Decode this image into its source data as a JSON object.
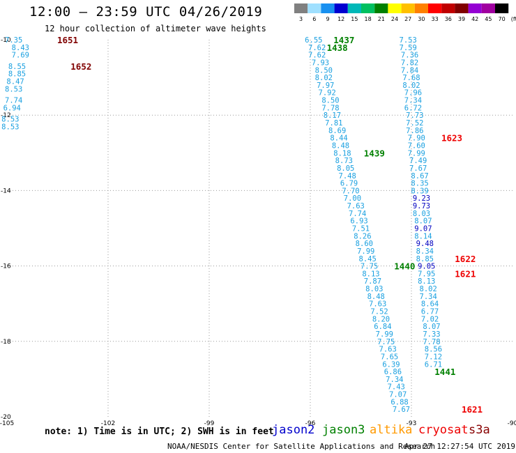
{
  "header": {
    "title": "12:00 — 23:59 UTC 04/26/2019",
    "subtitle": "12 hour collection of altimeter wave heights"
  },
  "colorbar": {
    "labels": [
      "3",
      "6",
      "9",
      "12",
      "15",
      "18",
      "21",
      "24",
      "27",
      "30",
      "33",
      "36",
      "39",
      "42",
      "45",
      "70",
      "(ft)"
    ],
    "colors": [
      "#808080",
      "#a0e0ff",
      "#1890f0",
      "#0000d0",
      "#00b8b8",
      "#00c060",
      "#008000",
      "#ffff00",
      "#ffc000",
      "#ff8000",
      "#ff0000",
      "#c00000",
      "#800000",
      "#9400d3",
      "#a000a0",
      "#000000"
    ]
  },
  "note": "note: 1) Time is in UTC; 2) SWH is in feet",
  "satellites": [
    {
      "name": "jason2",
      "color": "#0000cc"
    },
    {
      "name": "jason3",
      "color": "#008000"
    },
    {
      "name": "altika",
      "color": "#ff9900"
    },
    {
      "name": "cryosat",
      "color": "#ee0000"
    },
    {
      "name": "s3a",
      "color": "#880000"
    }
  ],
  "footer": {
    "left": "NOAA/NESDIS Center for Satellite Applications and Research",
    "right": "Apr 27 12:27:54 UTC 2019"
  },
  "chart_data": {
    "type": "scatter",
    "xlim": [
      -105,
      -90
    ],
    "ylim": [
      -20,
      -10
    ],
    "x_ticks": [
      -105,
      -102,
      -99,
      -96,
      -93,
      -90
    ],
    "y_ticks": [
      -10,
      -12,
      -14,
      -16,
      -18,
      -20
    ],
    "series": [
      {
        "name": "s3a",
        "color": "#1aa0e0",
        "points": [
          {
            "lon": -104.8,
            "lat": -10.0,
            "swh": "7.35"
          },
          {
            "lon": -104.6,
            "lat": -10.2,
            "swh": "8.43"
          },
          {
            "lon": -104.6,
            "lat": -10.4,
            "swh": "7.69"
          },
          {
            "lon": -104.7,
            "lat": -10.7,
            "swh": "8.55"
          },
          {
            "lon": -104.7,
            "lat": -10.9,
            "swh": "8.85"
          },
          {
            "lon": -104.75,
            "lat": -11.1,
            "swh": "8.47"
          },
          {
            "lon": -104.8,
            "lat": -11.3,
            "swh": "8.53"
          },
          {
            "lon": -104.8,
            "lat": -11.6,
            "swh": "7.74"
          },
          {
            "lon": -104.85,
            "lat": -11.8,
            "swh": "6.94"
          },
          {
            "lon": -104.9,
            "lat": -12.1,
            "swh": "8.53"
          },
          {
            "lon": -104.9,
            "lat": -12.3,
            "swh": "8.53"
          }
        ]
      },
      {
        "name": "jason3",
        "color": "#1aa0e0",
        "points": [
          {
            "lon": -95.9,
            "lat": -10.0,
            "swh": "6.55"
          },
          {
            "lon": -95.8,
            "lat": -10.2,
            "swh": "7.62"
          },
          {
            "lon": -95.8,
            "lat": -10.4,
            "swh": "7.62"
          },
          {
            "lon": -95.7,
            "lat": -10.6,
            "swh": "7.93"
          },
          {
            "lon": -95.6,
            "lat": -10.8,
            "swh": "8.50"
          },
          {
            "lon": -95.6,
            "lat": -11.0,
            "swh": "8.02"
          },
          {
            "lon": -95.55,
            "lat": -11.2,
            "swh": "7.97"
          },
          {
            "lon": -95.5,
            "lat": -11.4,
            "swh": "7.92"
          },
          {
            "lon": -95.4,
            "lat": -11.6,
            "swh": "8.50"
          },
          {
            "lon": -95.4,
            "lat": -11.8,
            "swh": "7.78"
          },
          {
            "lon": -95.35,
            "lat": -12.0,
            "swh": "8.17"
          },
          {
            "lon": -95.3,
            "lat": -12.2,
            "swh": "7.81"
          },
          {
            "lon": -95.2,
            "lat": -12.4,
            "swh": "8.69"
          },
          {
            "lon": -95.15,
            "lat": -12.6,
            "swh": "8.44"
          },
          {
            "lon": -95.1,
            "lat": -12.8,
            "swh": "8.48"
          },
          {
            "lon": -95.05,
            "lat": -13.0,
            "swh": "8.18"
          },
          {
            "lon": -95.0,
            "lat": -13.2,
            "swh": "8.73"
          },
          {
            "lon": -94.95,
            "lat": -13.4,
            "swh": "8.05"
          },
          {
            "lon": -94.9,
            "lat": -13.6,
            "swh": "7.48"
          },
          {
            "lon": -94.85,
            "lat": -13.8,
            "swh": "6.79"
          },
          {
            "lon": -94.8,
            "lat": -14.0,
            "swh": "7.70"
          },
          {
            "lon": -94.75,
            "lat": -14.2,
            "swh": "7.00"
          },
          {
            "lon": -94.65,
            "lat": -14.4,
            "swh": "7.63"
          },
          {
            "lon": -94.6,
            "lat": -14.6,
            "swh": "7.74"
          },
          {
            "lon": -94.55,
            "lat": -14.8,
            "swh": "6.93"
          },
          {
            "lon": -94.5,
            "lat": -15.0,
            "swh": "7.51"
          },
          {
            "lon": -94.45,
            "lat": -15.2,
            "swh": "8.26"
          },
          {
            "lon": -94.4,
            "lat": -15.4,
            "swh": "8.60"
          },
          {
            "lon": -94.35,
            "lat": -15.6,
            "swh": "7.99"
          },
          {
            "lon": -94.3,
            "lat": -15.8,
            "swh": "8.45"
          },
          {
            "lon": -94.25,
            "lat": -16.0,
            "swh": "7.75"
          },
          {
            "lon": -94.2,
            "lat": -16.2,
            "swh": "8.13"
          },
          {
            "lon": -94.15,
            "lat": -16.4,
            "swh": "7.87"
          },
          {
            "lon": -94.1,
            "lat": -16.6,
            "swh": "8.03"
          },
          {
            "lon": -94.05,
            "lat": -16.8,
            "swh": "8.48"
          },
          {
            "lon": -94.0,
            "lat": -17.0,
            "swh": "7.63"
          },
          {
            "lon": -93.95,
            "lat": -17.2,
            "swh": "7.52"
          },
          {
            "lon": -93.9,
            "lat": -17.4,
            "swh": "8.20"
          },
          {
            "lon": -93.85,
            "lat": -17.6,
            "swh": "6.84"
          },
          {
            "lon": -93.8,
            "lat": -17.8,
            "swh": "7.99"
          },
          {
            "lon": -93.75,
            "lat": -18.0,
            "swh": "7.75"
          },
          {
            "lon": -93.7,
            "lat": -18.2,
            "swh": "7.63"
          },
          {
            "lon": -93.65,
            "lat": -18.4,
            "swh": "7.65"
          },
          {
            "lon": -93.6,
            "lat": -18.6,
            "swh": "6.39"
          },
          {
            "lon": -93.55,
            "lat": -18.8,
            "swh": "6.86"
          },
          {
            "lon": -93.5,
            "lat": -19.0,
            "swh": "7.34"
          },
          {
            "lon": -93.45,
            "lat": -19.2,
            "swh": "7.43"
          },
          {
            "lon": -93.4,
            "lat": -19.4,
            "swh": "7.07"
          },
          {
            "lon": -93.35,
            "lat": -19.6,
            "swh": "6.88"
          },
          {
            "lon": -93.3,
            "lat": -19.8,
            "swh": "7.67"
          }
        ]
      },
      {
        "name": "cryosat",
        "color": "#1aa0e0",
        "points": [
          {
            "lon": -93.1,
            "lat": -10.0,
            "swh": "7.53"
          },
          {
            "lon": -93.1,
            "lat": -10.2,
            "swh": "7.59"
          },
          {
            "lon": -93.05,
            "lat": -10.4,
            "swh": "7.36"
          },
          {
            "lon": -93.05,
            "lat": -10.6,
            "swh": "7.82"
          },
          {
            "lon": -93.05,
            "lat": -10.8,
            "swh": "7.84"
          },
          {
            "lon": -93.0,
            "lat": -11.0,
            "swh": "7.68"
          },
          {
            "lon": -93.0,
            "lat": -11.2,
            "swh": "8.02"
          },
          {
            "lon": -92.95,
            "lat": -11.4,
            "swh": "7.96"
          },
          {
            "lon": -92.95,
            "lat": -11.6,
            "swh": "7.34"
          },
          {
            "lon": -92.95,
            "lat": -11.8,
            "swh": "6.72"
          },
          {
            "lon": -92.9,
            "lat": -12.0,
            "swh": "7.73"
          },
          {
            "lon": -92.9,
            "lat": -12.2,
            "swh": "7.52"
          },
          {
            "lon": -92.9,
            "lat": -12.4,
            "swh": "7.86"
          },
          {
            "lon": -92.85,
            "lat": -12.6,
            "swh": "7.90"
          },
          {
            "lon": -92.85,
            "lat": -12.8,
            "swh": "7.60"
          },
          {
            "lon": -92.85,
            "lat": -13.0,
            "swh": "7.99"
          },
          {
            "lon": -92.8,
            "lat": -13.2,
            "swh": "7.49"
          },
          {
            "lon": -92.8,
            "lat": -13.4,
            "swh": "7.67"
          },
          {
            "lon": -92.75,
            "lat": -13.6,
            "swh": "8.67"
          },
          {
            "lon": -92.75,
            "lat": -13.8,
            "swh": "8.35"
          },
          {
            "lon": -92.75,
            "lat": -14.0,
            "swh": "8.39"
          },
          {
            "lon": -92.7,
            "lat": -14.2,
            "swh": "9.23",
            "color": "#0000c0"
          },
          {
            "lon": -92.7,
            "lat": -14.4,
            "swh": "9.73",
            "color": "#0000c0"
          },
          {
            "lon": -92.7,
            "lat": -14.6,
            "swh": "8.03"
          },
          {
            "lon": -92.65,
            "lat": -14.8,
            "swh": "8.07"
          },
          {
            "lon": -92.65,
            "lat": -15.0,
            "swh": "9.07",
            "color": "#0000c0"
          },
          {
            "lon": -92.65,
            "lat": -15.2,
            "swh": "8.14"
          },
          {
            "lon": -92.6,
            "lat": -15.4,
            "swh": "9.48",
            "color": "#0000c0"
          },
          {
            "lon": -92.6,
            "lat": -15.6,
            "swh": "8.34"
          },
          {
            "lon": -92.6,
            "lat": -15.8,
            "swh": "8.85"
          },
          {
            "lon": -92.55,
            "lat": -16.0,
            "swh": "9.05",
            "color": "#0000c0"
          },
          {
            "lon": -92.55,
            "lat": -16.2,
            "swh": "7.95"
          },
          {
            "lon": -92.55,
            "lat": -16.4,
            "swh": "8.13"
          },
          {
            "lon": -92.5,
            "lat": -16.6,
            "swh": "8.02"
          },
          {
            "lon": -92.5,
            "lat": -16.8,
            "swh": "7.34"
          },
          {
            "lon": -92.45,
            "lat": -17.0,
            "swh": "8.64"
          },
          {
            "lon": -92.45,
            "lat": -17.2,
            "swh": "6.77"
          },
          {
            "lon": -92.45,
            "lat": -17.4,
            "swh": "7.02"
          },
          {
            "lon": -92.4,
            "lat": -17.6,
            "swh": "8.07"
          },
          {
            "lon": -92.4,
            "lat": -17.8,
            "swh": "7.33"
          },
          {
            "lon": -92.4,
            "lat": -18.0,
            "swh": "7.78"
          },
          {
            "lon": -92.35,
            "lat": -18.2,
            "swh": "8.56"
          },
          {
            "lon": -92.35,
            "lat": -18.4,
            "swh": "7.12"
          },
          {
            "lon": -92.35,
            "lat": -18.6,
            "swh": "6.71"
          }
        ]
      }
    ],
    "time_labels": [
      {
        "text": "1651",
        "lon": -103.2,
        "lat": -10.0,
        "color": "#800000"
      },
      {
        "text": "1652",
        "lon": -102.8,
        "lat": -10.7,
        "color": "#800000"
      },
      {
        "text": "1437",
        "lon": -95.0,
        "lat": -10.0,
        "color": "#008000"
      },
      {
        "text": "1438",
        "lon": -95.2,
        "lat": -10.2,
        "color": "#008000"
      },
      {
        "text": "1439",
        "lon": -94.1,
        "lat": -13.0,
        "color": "#008000"
      },
      {
        "text": "1623",
        "lon": -91.8,
        "lat": -12.6,
        "color": "#ee0000"
      },
      {
        "text": "1440",
        "lon": -93.2,
        "lat": -16.0,
        "color": "#008000"
      },
      {
        "text": "1622",
        "lon": -91.4,
        "lat": -15.8,
        "color": "#ee0000"
      },
      {
        "text": "1621",
        "lon": -91.4,
        "lat": -16.2,
        "color": "#ee0000"
      },
      {
        "text": "1441",
        "lon": -92.0,
        "lat": -18.8,
        "color": "#008000"
      },
      {
        "text": "1621",
        "lon": -91.2,
        "lat": -19.8,
        "color": "#ee0000"
      }
    ]
  }
}
